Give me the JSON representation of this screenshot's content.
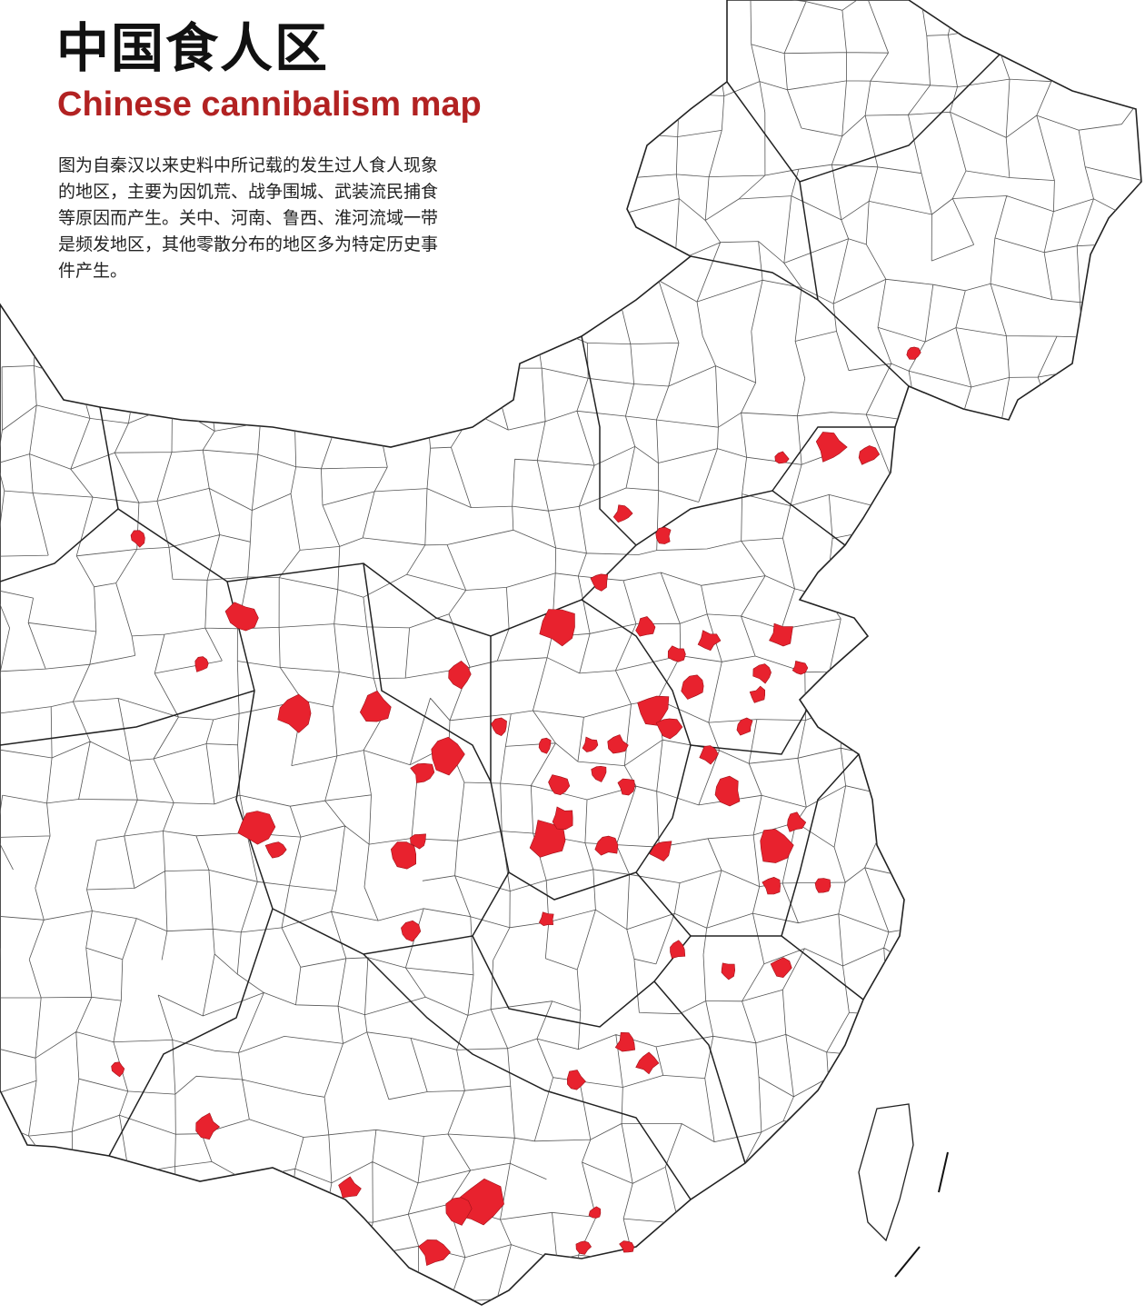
{
  "header": {
    "title": "中国食人区",
    "subtitle": "Chinese cannibalism map",
    "description": [
      "图为自秦汉以来史料中所记载的发生过人食人现象",
      "的地区，主要为因饥荒、战争围城、武装流民捕食",
      "等原因而产生。关中、河南、鲁西、淮河流域一带",
      "是频发地区，其他零散分布的地区多为特定历史事",
      "件产生。"
    ]
  }
}
